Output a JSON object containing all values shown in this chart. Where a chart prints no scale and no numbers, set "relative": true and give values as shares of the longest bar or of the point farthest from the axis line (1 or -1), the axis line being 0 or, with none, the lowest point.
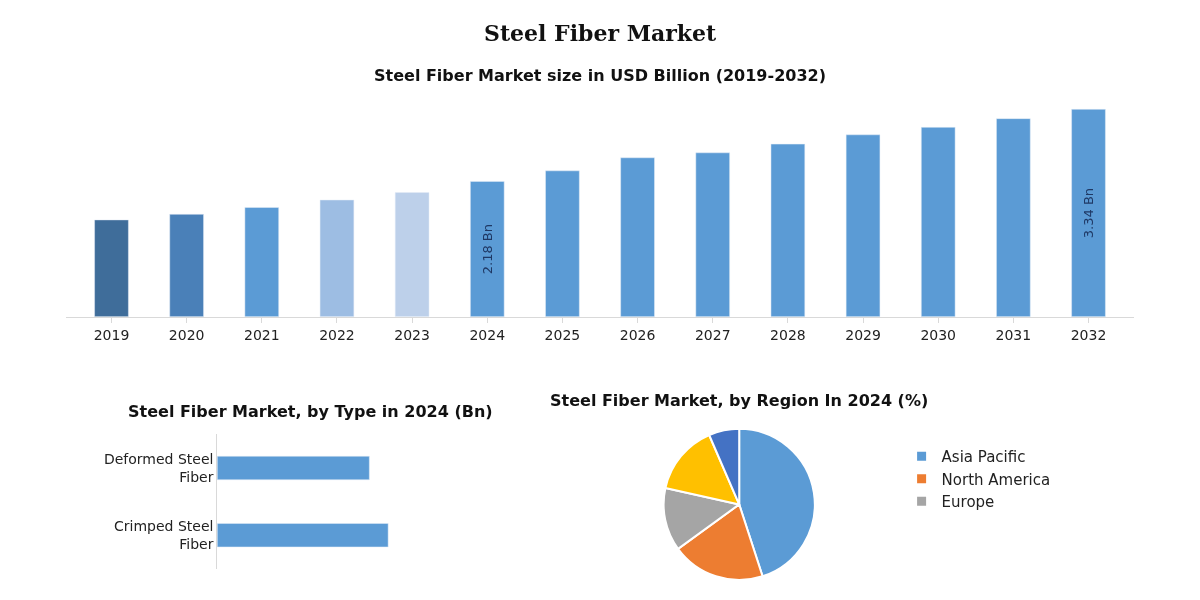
{
  "chart_data": [
    {
      "type": "bar",
      "title": "Steel Fiber Market",
      "subtitle": "Steel Fiber Market size in USD Billion (2019-2032)",
      "categories": [
        "2019",
        "2020",
        "2021",
        "2022",
        "2023",
        "2024",
        "2025",
        "2026",
        "2027",
        "2028",
        "2029",
        "2030",
        "2031",
        "2032"
      ],
      "values": [
        1.56,
        1.65,
        1.76,
        1.88,
        2.0,
        2.18,
        2.35,
        2.56,
        2.64,
        2.78,
        2.93,
        3.05,
        3.19,
        3.34
      ],
      "colors": [
        "#3f6d9a",
        "#4a80b8",
        "#5b9bd5",
        "#9dbde3",
        "#bdd0ea",
        "#5b9bd5",
        "#5b9bd5",
        "#5b9bd5",
        "#5b9bd5",
        "#5b9bd5",
        "#5b9bd5",
        "#5b9bd5",
        "#5b9bd5",
        "#5b9bd5"
      ],
      "value_labels": [
        null,
        null,
        null,
        null,
        null,
        "2.18 Bn",
        null,
        null,
        null,
        null,
        null,
        null,
        null,
        "3.34 Bn"
      ],
      "tick_labels": "x"
    },
    {
      "type": "bar",
      "orientation": "horizontal",
      "relative": true,
      "title": "Steel Fiber Market, by Type in 2024 (Bn)",
      "categories": [
        "Deformed Steel Fiber",
        "Crimped Steel Fiber"
      ],
      "values": [
        0.89,
        1
      ],
      "color": "#5b9bd5"
    },
    {
      "type": "pie",
      "title": "Steel Fiber Market, by Region In 2024 (%)",
      "categories": [
        "Asia Pacific",
        "North America",
        "Europe",
        null,
        null
      ],
      "values": [
        45,
        20,
        13.5,
        15,
        6.5
      ],
      "colors": [
        "#5b9bd5",
        "#ed7d31",
        "#a5a5a5",
        "#ffc000",
        "#4472c4"
      ],
      "legend": "right"
    }
  ]
}
